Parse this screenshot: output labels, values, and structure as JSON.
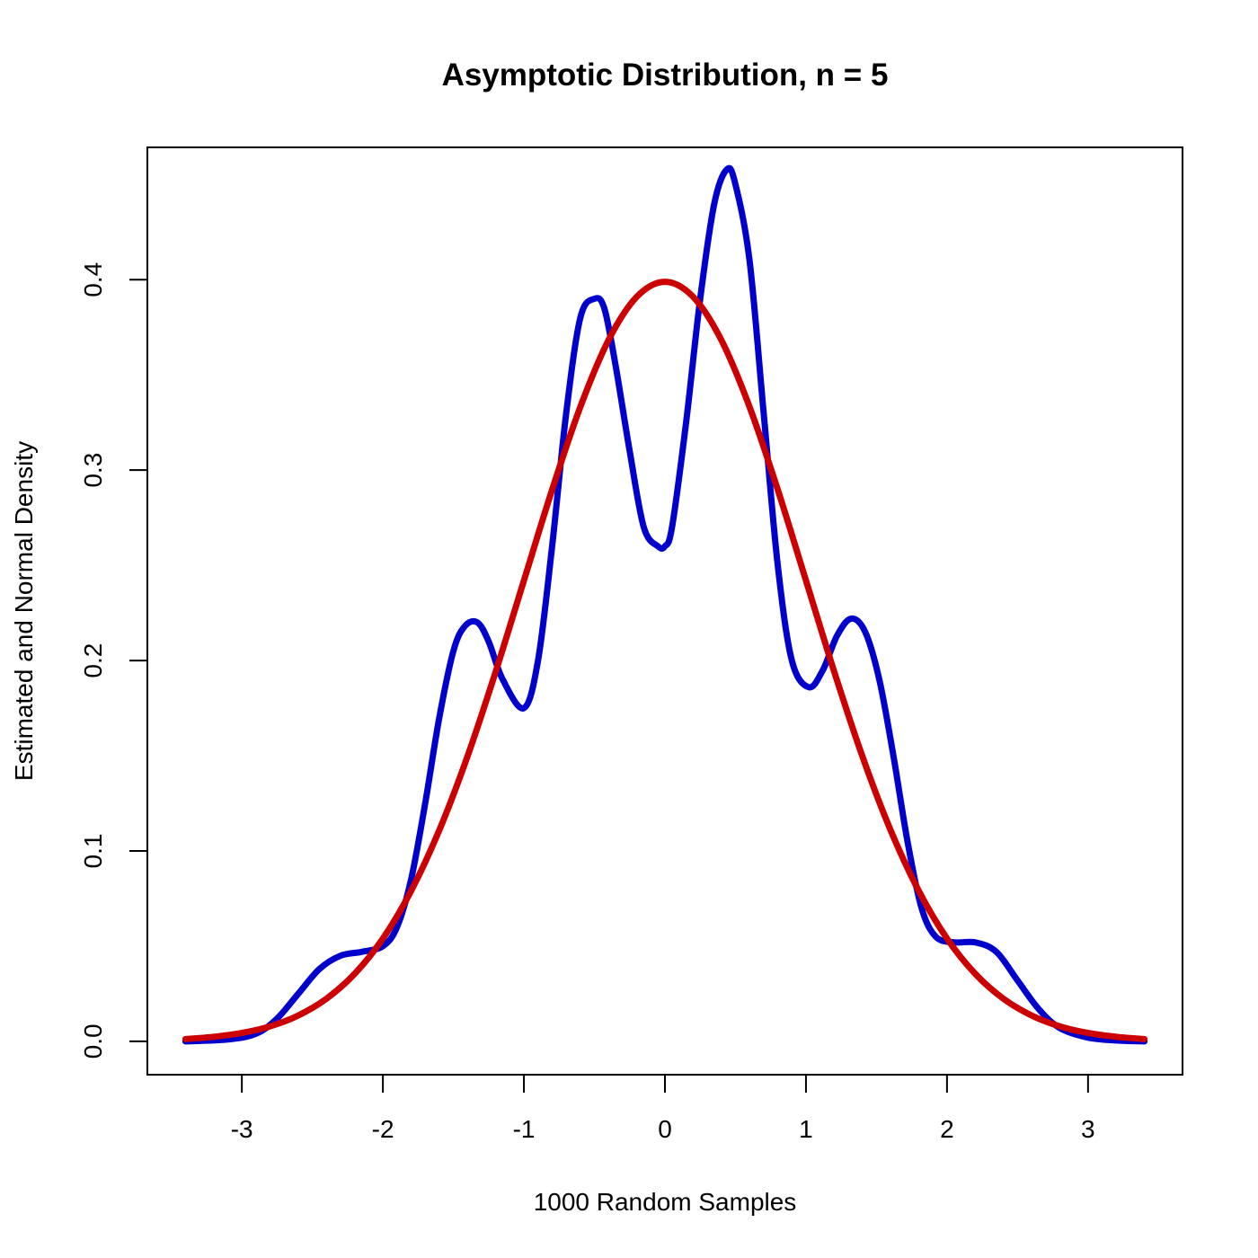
{
  "chart_data": {
    "type": "line",
    "title": "Asymptotic Distribution, n = 5",
    "xlabel": "1000 Random Samples",
    "ylabel": "Estimated and Normal Density",
    "xlim": [
      -3.67,
      3.67
    ],
    "ylim": [
      -0.0175,
      0.4695
    ],
    "x_ticks": [
      -3,
      -2,
      -1,
      0,
      1,
      2,
      3
    ],
    "x_tick_labels": [
      "-3",
      "-2",
      "-1",
      "0",
      "1",
      "2",
      "3"
    ],
    "y_ticks": [
      0.0,
      0.1,
      0.2,
      0.3,
      0.4
    ],
    "y_tick_labels": [
      "0.0",
      "0.1",
      "0.2",
      "0.3",
      "0.4"
    ],
    "grid": false,
    "legend": "none",
    "series": [
      {
        "color": "#0000cc",
        "style": "estimated density (smooth curve)",
        "x": [
          -3.4,
          -3.1,
          -2.9,
          -2.75,
          -2.6,
          -2.45,
          -2.3,
          -2.15,
          -2.0,
          -1.9,
          -1.8,
          -1.7,
          -1.6,
          -1.5,
          -1.42,
          -1.33,
          -1.25,
          -1.15,
          -1.0,
          -0.9,
          -0.8,
          -0.7,
          -0.6,
          -0.5,
          -0.43,
          -0.35,
          -0.25,
          -0.15,
          -0.05,
          0.0,
          0.05,
          0.15,
          0.25,
          0.35,
          0.44,
          0.5,
          0.6,
          0.7,
          0.8,
          0.9,
          1.02,
          1.12,
          1.22,
          1.32,
          1.42,
          1.52,
          1.62,
          1.72,
          1.82,
          1.92,
          2.05,
          2.2,
          2.35,
          2.5,
          2.65,
          2.8,
          3.0,
          3.2,
          3.4
        ],
        "y": [
          0.0,
          0.001,
          0.004,
          0.012,
          0.025,
          0.038,
          0.045,
          0.047,
          0.05,
          0.06,
          0.085,
          0.125,
          0.17,
          0.205,
          0.218,
          0.22,
          0.21,
          0.19,
          0.175,
          0.2,
          0.26,
          0.33,
          0.38,
          0.39,
          0.385,
          0.355,
          0.31,
          0.27,
          0.26,
          0.26,
          0.27,
          0.325,
          0.39,
          0.44,
          0.458,
          0.45,
          0.41,
          0.33,
          0.25,
          0.2,
          0.186,
          0.195,
          0.213,
          0.222,
          0.215,
          0.19,
          0.15,
          0.105,
          0.07,
          0.055,
          0.052,
          0.052,
          0.047,
          0.032,
          0.017,
          0.007,
          0.002,
          0.0005,
          0.0
        ]
      },
      {
        "color": "#cc0000",
        "style": "normal density N(0,1)",
        "x": [
          -3.4,
          -3.2,
          -3.0,
          -2.8,
          -2.6,
          -2.4,
          -2.2,
          -2.0,
          -1.8,
          -1.6,
          -1.4,
          -1.2,
          -1.0,
          -0.8,
          -0.6,
          -0.4,
          -0.2,
          0.0,
          0.2,
          0.4,
          0.6,
          0.8,
          1.0,
          1.2,
          1.4,
          1.6,
          1.8,
          2.0,
          2.2,
          2.4,
          2.6,
          2.8,
          3.0,
          3.2,
          3.4
        ],
        "y": [
          0.0012,
          0.0024,
          0.0044,
          0.0079,
          0.0136,
          0.0224,
          0.0355,
          0.054,
          0.079,
          0.1109,
          0.1497,
          0.1942,
          0.242,
          0.2897,
          0.3332,
          0.3683,
          0.391,
          0.3989,
          0.391,
          0.3683,
          0.3332,
          0.2897,
          0.242,
          0.1942,
          0.1497,
          0.1109,
          0.079,
          0.054,
          0.0355,
          0.0224,
          0.0136,
          0.0079,
          0.0044,
          0.0024,
          0.0012
        ]
      }
    ]
  }
}
